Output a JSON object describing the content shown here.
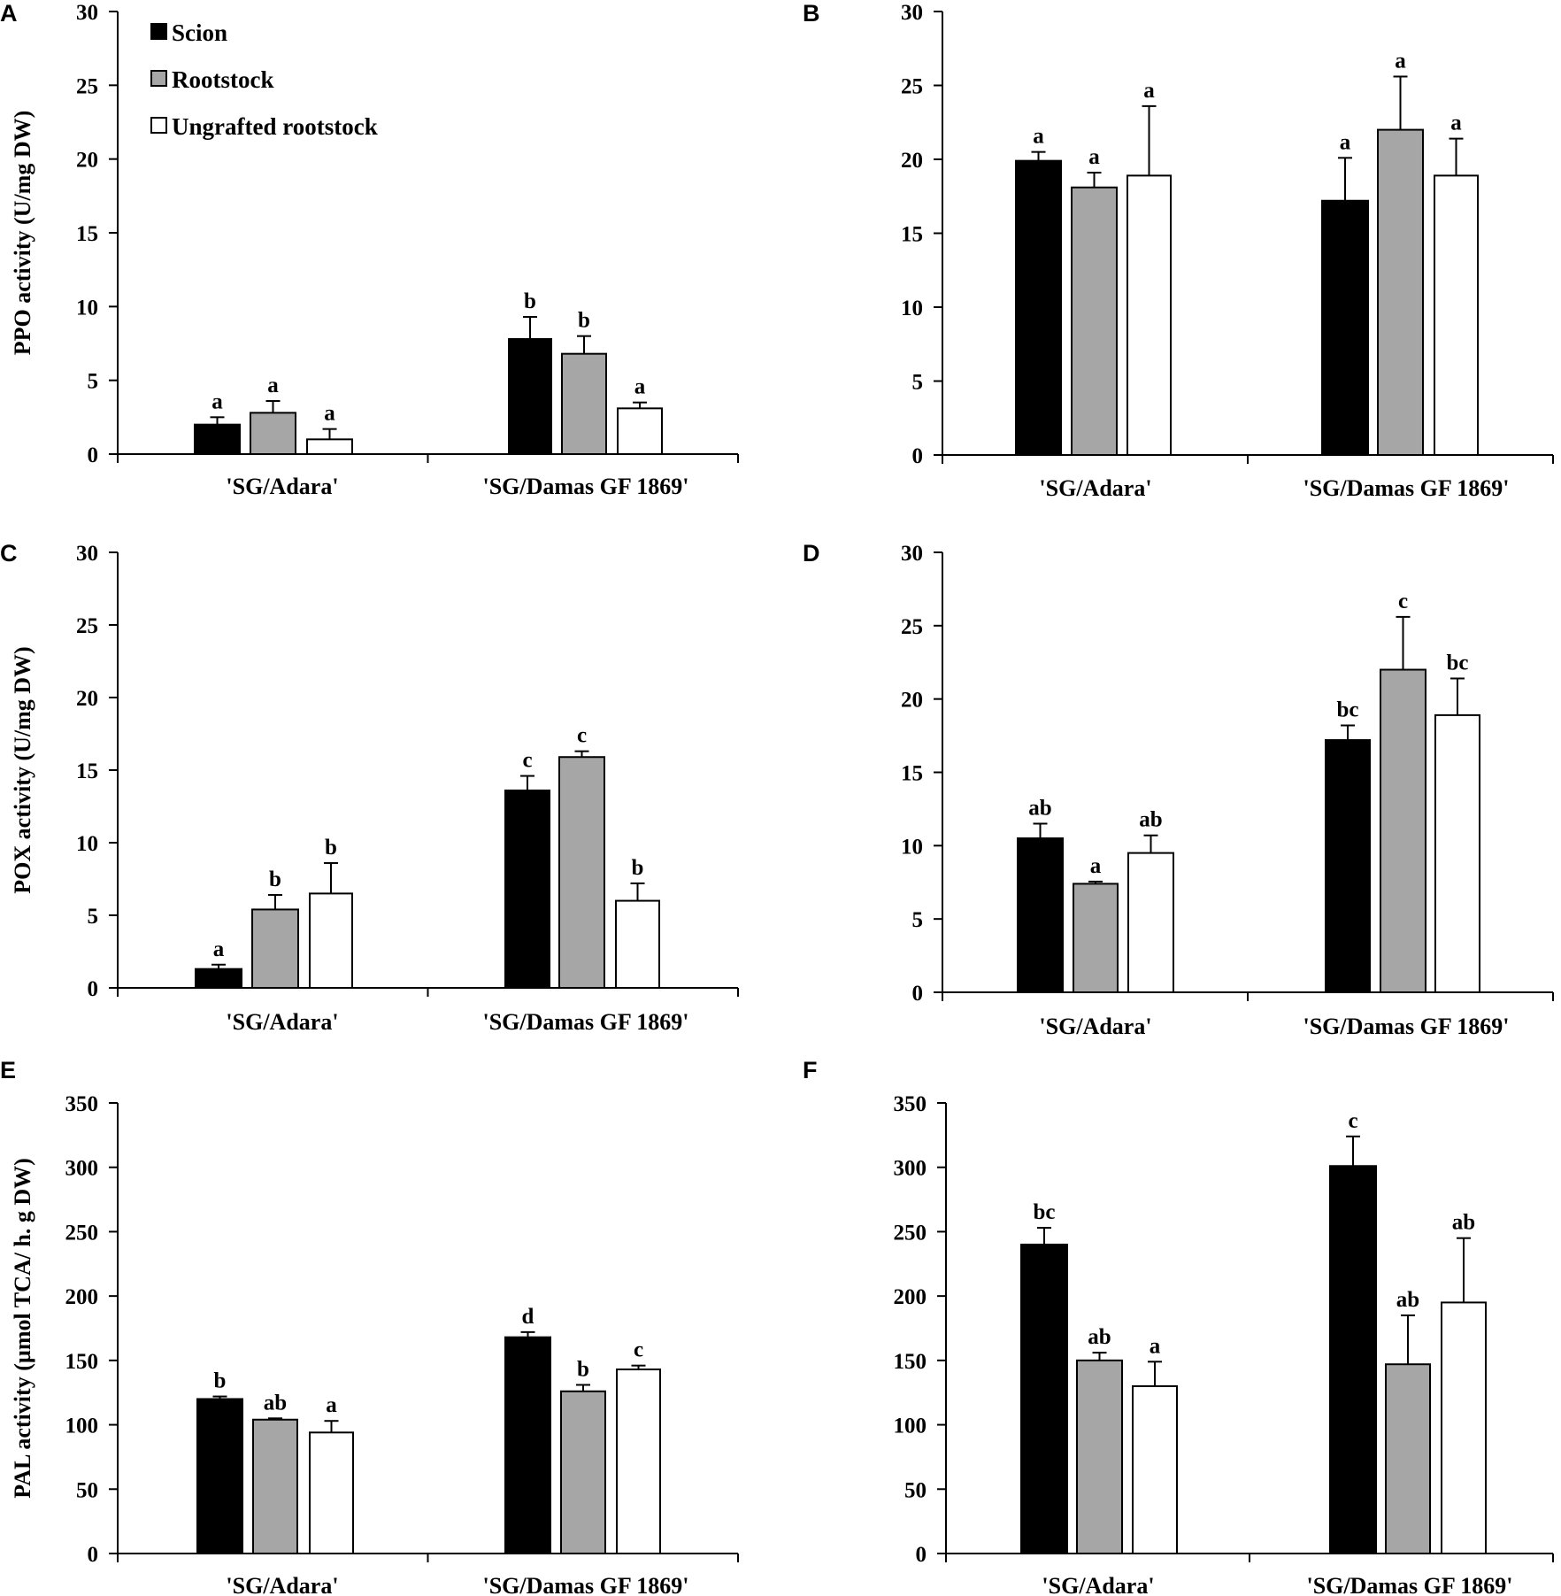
{
  "colors": {
    "scion": "#000000",
    "rootstock": "#a6a6a6",
    "ungrafted": "#ffffff",
    "axis": "#000000",
    "background": "#ffffff"
  },
  "legend": {
    "entries": [
      "Scion",
      "Rootstock",
      "Ungrafted rootstock"
    ]
  },
  "chart_data": [
    {
      "panel": "A",
      "type": "bar",
      "title": "",
      "xlabel": "",
      "ylabel": "PPO activity (U/mg DW)",
      "ylim": [
        0,
        30
      ],
      "yticks": [
        0,
        5,
        10,
        15,
        20,
        25,
        30
      ],
      "categories": [
        "'SG/Adara'",
        "'SG/Damas GF 1869'"
      ],
      "series": [
        {
          "name": "Scion",
          "values": [
            2.0,
            7.8
          ],
          "errors": [
            0.5,
            1.5
          ],
          "letters": [
            "a",
            "b"
          ]
        },
        {
          "name": "Rootstock",
          "values": [
            2.8,
            6.8
          ],
          "errors": [
            0.8,
            1.2
          ],
          "letters": [
            "a",
            "b"
          ]
        },
        {
          "name": "Ungrafted rootstock",
          "values": [
            1.0,
            3.1
          ],
          "errors": [
            0.7,
            0.4
          ],
          "letters": [
            "a",
            "a"
          ]
        }
      ]
    },
    {
      "panel": "B",
      "type": "bar",
      "title": "",
      "xlabel": "",
      "ylabel": "",
      "ylim": [
        0,
        30
      ],
      "yticks": [
        0,
        5,
        10,
        15,
        20,
        25,
        30
      ],
      "categories": [
        "'SG/Adara'",
        "'SG/Damas GF 1869'"
      ],
      "series": [
        {
          "name": "Scion",
          "values": [
            19.9,
            17.2
          ],
          "errors": [
            0.6,
            2.9
          ],
          "letters": [
            "a",
            "a"
          ]
        },
        {
          "name": "Rootstock",
          "values": [
            18.1,
            22.0
          ],
          "errors": [
            1.0,
            3.6
          ],
          "letters": [
            "a",
            "a"
          ]
        },
        {
          "name": "Ungrafted rootstock",
          "values": [
            18.9,
            18.9
          ],
          "errors": [
            4.7,
            2.5
          ],
          "letters": [
            "a",
            "a"
          ]
        }
      ]
    },
    {
      "panel": "C",
      "type": "bar",
      "title": "",
      "xlabel": "",
      "ylabel": "POX activity (U/mg DW)",
      "ylim": [
        0,
        30
      ],
      "yticks": [
        0,
        5,
        10,
        15,
        20,
        25,
        30
      ],
      "categories": [
        "'SG/Adara'",
        "'SG/Damas GF 1869'"
      ],
      "series": [
        {
          "name": "Scion",
          "values": [
            1.3,
            13.6
          ],
          "errors": [
            0.3,
            1.0
          ],
          "letters": [
            "a",
            "c"
          ]
        },
        {
          "name": "Rootstock",
          "values": [
            5.4,
            15.9
          ],
          "errors": [
            1.0,
            0.4
          ],
          "letters": [
            "b",
            "c"
          ]
        },
        {
          "name": "Ungrafted rootstock",
          "values": [
            6.5,
            6.0
          ],
          "errors": [
            2.1,
            1.2
          ],
          "letters": [
            "b",
            "b"
          ]
        }
      ]
    },
    {
      "panel": "D",
      "type": "bar",
      "title": "",
      "xlabel": "",
      "ylabel": "",
      "ylim": [
        0,
        30
      ],
      "yticks": [
        0,
        5,
        10,
        15,
        20,
        25,
        30
      ],
      "categories": [
        "'SG/Adara'",
        "'SG/Damas GF 1869'"
      ],
      "series": [
        {
          "name": "Scion",
          "values": [
            10.5,
            17.2
          ],
          "errors": [
            1.0,
            1.0
          ],
          "letters": [
            "ab",
            "bc"
          ]
        },
        {
          "name": "Rootstock",
          "values": [
            7.4,
            22.0
          ],
          "errors": [
            0.15,
            3.6
          ],
          "letters": [
            "a",
            "c"
          ]
        },
        {
          "name": "Ungrafted rootstock",
          "values": [
            9.5,
            18.9
          ],
          "errors": [
            1.2,
            2.5
          ],
          "letters": [
            "ab",
            "bc"
          ]
        }
      ]
    },
    {
      "panel": "E",
      "type": "bar",
      "title": "",
      "xlabel": "",
      "ylabel": "PAL activity (µmol TCA/ h. g DW)",
      "ylim": [
        0,
        350
      ],
      "yticks": [
        0,
        50,
        100,
        150,
        200,
        250,
        300,
        350
      ],
      "categories": [
        "'SG/Adara'",
        "'SG/Damas GF 1869'"
      ],
      "series": [
        {
          "name": "Scion",
          "values": [
            120,
            168
          ],
          "errors": [
            2,
            4
          ],
          "letters": [
            "b",
            "d"
          ]
        },
        {
          "name": "Rootstock",
          "values": [
            104,
            126
          ],
          "errors": [
            1,
            5
          ],
          "letters": [
            "ab",
            "b"
          ]
        },
        {
          "name": "Ungrafted rootstock",
          "values": [
            94,
            143
          ],
          "errors": [
            9,
            3
          ],
          "letters": [
            "a",
            "c"
          ]
        }
      ]
    },
    {
      "panel": "F",
      "type": "bar",
      "title": "",
      "xlabel": "",
      "ylabel": "",
      "ylim": [
        0,
        350
      ],
      "yticks": [
        0,
        50,
        100,
        150,
        200,
        250,
        300,
        350
      ],
      "categories": [
        "'SG/Adara'",
        "'SG/Damas GF 1869'"
      ],
      "series": [
        {
          "name": "Scion",
          "values": [
            240,
            301
          ],
          "errors": [
            13,
            23
          ],
          "letters": [
            "bc",
            "c"
          ]
        },
        {
          "name": "Rootstock",
          "values": [
            150,
            147
          ],
          "errors": [
            6,
            38
          ],
          "letters": [
            "ab",
            "ab"
          ]
        },
        {
          "name": "Ungrafted rootstock",
          "values": [
            130,
            195
          ],
          "errors": [
            19,
            50
          ],
          "letters": [
            "a",
            "ab"
          ]
        }
      ]
    }
  ]
}
